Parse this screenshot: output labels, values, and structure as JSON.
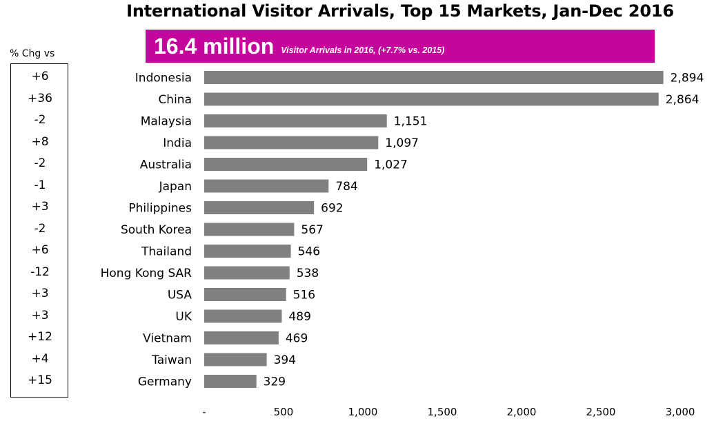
{
  "title": "International Visitor Arrivals, Top 15 Markets, Jan-Dec 2016",
  "banner": {
    "headline": "16.4 million",
    "subtext": "Visitor Arrivals in 2016, (+7.7% vs. 2015)",
    "color": "#c4069c"
  },
  "pct_change": {
    "header": "% Chg vs",
    "values": [
      "+6",
      "+36",
      "-2",
      "+8",
      "-2",
      "-1",
      "+3",
      "-2",
      "+6",
      "-12",
      "+3",
      "+3",
      "+12",
      "+4",
      "+15"
    ]
  },
  "chart_data": {
    "type": "bar",
    "orientation": "horizontal",
    "categories": [
      "Indonesia",
      "China",
      "Malaysia",
      "India",
      "Australia",
      "Japan",
      "Philippines",
      "South Korea",
      "Thailand",
      "Hong Kong SAR",
      "USA",
      "UK",
      "Vietnam",
      "Taiwan",
      "Germany"
    ],
    "values": [
      2894,
      2864,
      1151,
      1097,
      1027,
      784,
      692,
      567,
      546,
      538,
      516,
      489,
      469,
      394,
      329
    ],
    "value_labels": [
      "2,894",
      "2,864",
      "1,151",
      "1,097",
      "1,027",
      "784",
      "692",
      "567",
      "546",
      "538",
      "516",
      "489",
      "469",
      "394",
      "329"
    ],
    "xlim": [
      0,
      3000
    ],
    "x_ticks": [
      0,
      500,
      1000,
      1500,
      2000,
      2500,
      3000
    ],
    "x_tick_labels": [
      "-",
      "500",
      "1,000",
      "1,500",
      "2,000",
      "2,500",
      "3,000"
    ],
    "bar_color": "#808080",
    "grid": false,
    "legend": false
  }
}
